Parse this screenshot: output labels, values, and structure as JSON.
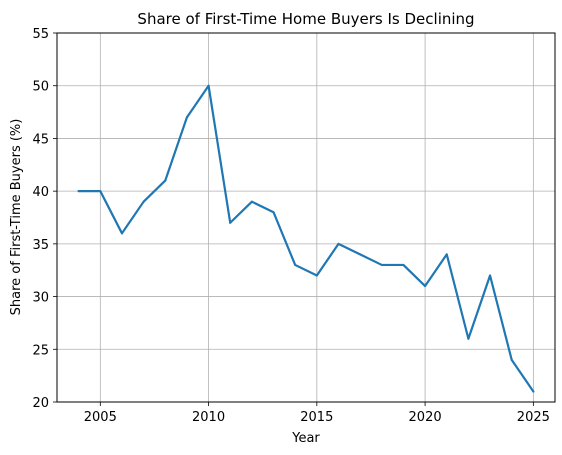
{
  "chart_data": {
    "type": "line",
    "title": "Share of First-Time Home Buyers Is Declining",
    "xlabel": "Year",
    "ylabel": "Share of First-Time Buyers (%)",
    "xlim": [
      2003,
      2026
    ],
    "ylim": [
      20,
      55
    ],
    "xticks": [
      2005,
      2010,
      2015,
      2020,
      2025
    ],
    "yticks": [
      20,
      25,
      30,
      35,
      40,
      45,
      50,
      55
    ],
    "grid": true,
    "series": [
      {
        "color": "#1f77b4",
        "x": [
          2004,
          2005,
          2006,
          2007,
          2008,
          2009,
          2010,
          2011,
          2012,
          2013,
          2014,
          2015,
          2016,
          2017,
          2018,
          2019,
          2020,
          2021,
          2022,
          2023,
          2024,
          2025
        ],
        "y": [
          40,
          40,
          36,
          39,
          41,
          47,
          50,
          37,
          39,
          38,
          33,
          32,
          35,
          34,
          33,
          33,
          31,
          34,
          26,
          32,
          24,
          21
        ]
      }
    ]
  }
}
